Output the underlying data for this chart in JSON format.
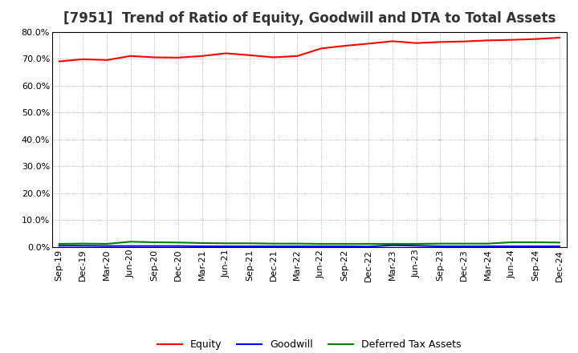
{
  "title": "[7951]  Trend of Ratio of Equity, Goodwill and DTA to Total Assets",
  "x_labels": [
    "Sep-19",
    "Dec-19",
    "Mar-20",
    "Jun-20",
    "Sep-20",
    "Dec-20",
    "Mar-21",
    "Jun-21",
    "Sep-21",
    "Dec-21",
    "Mar-22",
    "Jun-22",
    "Sep-22",
    "Dec-22",
    "Mar-23",
    "Jun-23",
    "Sep-23",
    "Dec-23",
    "Mar-24",
    "Jun-24",
    "Sep-24",
    "Dec-24"
  ],
  "equity": [
    0.69,
    0.698,
    0.695,
    0.71,
    0.705,
    0.704,
    0.71,
    0.72,
    0.713,
    0.705,
    0.71,
    0.738,
    0.748,
    0.756,
    0.765,
    0.758,
    0.762,
    0.764,
    0.768,
    0.77,
    0.773,
    0.778
  ],
  "goodwill": [
    0.005,
    0.005,
    0.004,
    0.004,
    0.004,
    0.004,
    0.003,
    0.003,
    0.003,
    0.003,
    0.003,
    0.003,
    0.003,
    0.002,
    0.007,
    0.005,
    0.003,
    0.003,
    0.003,
    0.003,
    0.003,
    0.003
  ],
  "dta": [
    0.012,
    0.013,
    0.012,
    0.02,
    0.018,
    0.017,
    0.015,
    0.014,
    0.014,
    0.013,
    0.013,
    0.012,
    0.012,
    0.012,
    0.012,
    0.012,
    0.013,
    0.013,
    0.013,
    0.018,
    0.018,
    0.017
  ],
  "equity_color": "#FF0000",
  "goodwill_color": "#0000FF",
  "dta_color": "#008000",
  "ylim": [
    0.0,
    0.8
  ],
  "yticks": [
    0.0,
    0.1,
    0.2,
    0.3,
    0.4,
    0.5,
    0.6,
    0.7,
    0.8
  ],
  "background_color": "#FFFFFF",
  "plot_bg_color": "#FFFFFF",
  "grid_color": "#999999",
  "title_fontsize": 12,
  "tick_fontsize": 8,
  "legend_fontsize": 9
}
